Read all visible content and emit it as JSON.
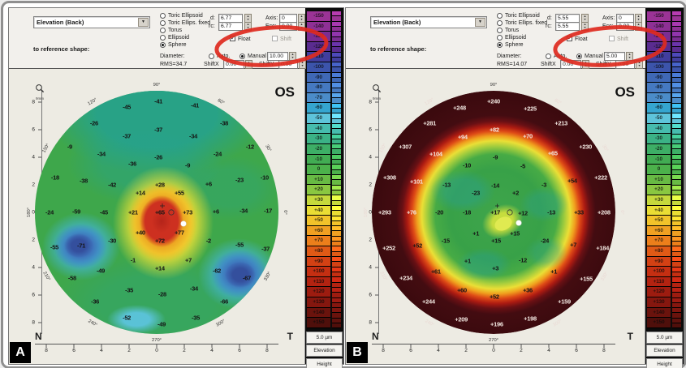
{
  "colors": {
    "annotation_red": "#de2a1e",
    "map_a_base_green": "#3ea74b",
    "map_b_ring_maroon": "#430c11",
    "hot_spot_red": "#cd3020",
    "cool_spot_blue": "#3e72bb"
  },
  "colorbar": {
    "unit": "5.0 µm",
    "btn_elevation": "Elevation",
    "btn_height": "Height",
    "segments": [
      {
        "label": "-150",
        "color": "#9b3396"
      },
      {
        "label": "-140",
        "color": "#8e3095"
      },
      {
        "label": "-130",
        "color": "#7b2d93"
      },
      {
        "label": "-120",
        "color": "#5a2c90"
      },
      {
        "label": "-110",
        "color": "#413e9e"
      },
      {
        "label": "-100",
        "color": "#3c54ab"
      },
      {
        "label": "-90",
        "color": "#3f68b6"
      },
      {
        "label": "-80",
        "color": "#4579c1"
      },
      {
        "label": "-70",
        "color": "#4b8cc9"
      },
      {
        "label": "-60",
        "color": "#35a5cf"
      },
      {
        "label": "-50",
        "color": "#5ec4da"
      },
      {
        "label": "-40",
        "color": "#46bcae"
      },
      {
        "label": "-30",
        "color": "#3bb286"
      },
      {
        "label": "-20",
        "color": "#3dae66"
      },
      {
        "label": "-10",
        "color": "#42ac53"
      },
      {
        "label": "0",
        "color": "#4cb14b"
      },
      {
        "label": "+10",
        "color": "#68ba44"
      },
      {
        "label": "+20",
        "color": "#8ac741"
      },
      {
        "label": "+30",
        "color": "#c6d93c"
      },
      {
        "label": "+40",
        "color": "#eadd34"
      },
      {
        "label": "+50",
        "color": "#f2c32a"
      },
      {
        "label": "+60",
        "color": "#f0a022"
      },
      {
        "label": "+70",
        "color": "#ec7f1b"
      },
      {
        "label": "+80",
        "color": "#e05a16"
      },
      {
        "label": "+90",
        "color": "#d34114"
      },
      {
        "label": "+100",
        "color": "#c52f12"
      },
      {
        "label": "+110",
        "color": "#b32311"
      },
      {
        "label": "+120",
        "color": "#9d1c10"
      },
      {
        "label": "+130",
        "color": "#85170f"
      },
      {
        "label": "+140",
        "color": "#6a130d"
      },
      {
        "label": "+150",
        "color": "#4f0f0b"
      }
    ]
  },
  "panels": [
    {
      "badge": "A",
      "controls": {
        "map_type": "Elevation (Back)",
        "reference_label": "to reference shape:",
        "shape_options": [
          "Toric Ellipsoid",
          "Toric Ellips. fixed",
          "Torus",
          "Ellipsoid",
          "Sphere"
        ],
        "selected_shape": "Sphere",
        "d_label": "d:",
        "d_value": "6.77",
        "rc_label": "rc:",
        "rc_value": "6.77",
        "axis_label": "Axis:",
        "axis_value": "0",
        "ecc_label": "Ecc:",
        "ecc_value": "0.00",
        "float_label": "Float",
        "shift_hint": "Shift",
        "diameter_label": "Diameter:",
        "auto_label": "Auto.",
        "manual_label": "Manual",
        "manual_value": "10.00",
        "rms": "RMS=34.7",
        "shiftx_label": "ShiftX",
        "shiftx_value": "0.00",
        "shifty_label": "ShiftY",
        "shifty_value": "0.00"
      },
      "map": {
        "eye": "OS",
        "n_label": "N",
        "t_label": "T",
        "zoom_label": "9mm",
        "x_labels": [
          "8",
          "6",
          "4",
          "2",
          "0",
          "2",
          "4",
          "6",
          "8"
        ],
        "y_labels": [
          "8",
          "6",
          "4",
          "2",
          "0",
          "2",
          "4",
          "6",
          "8"
        ],
        "axis_pos": [
          4.7,
          16,
          27.3,
          38.7,
          50,
          61.3,
          72.7,
          84,
          95.3
        ],
        "angles": [
          {
            "v": "0°",
            "l": 102.5,
            "t": 50,
            "rot": 90
          },
          {
            "v": "30°",
            "l": 95.5,
            "t": 23.8,
            "rot": 60
          },
          {
            "v": "60°",
            "l": 76.3,
            "t": 4.5,
            "rot": 30
          },
          {
            "v": "90°",
            "l": 50,
            "t": -2.5,
            "rot": 0
          },
          {
            "v": "120°",
            "l": 23.8,
            "t": 4.5,
            "rot": -30
          },
          {
            "v": "150°",
            "l": 4.5,
            "t": 23.8,
            "rot": -60
          },
          {
            "v": "180°",
            "l": -2.5,
            "t": 50,
            "rot": -90
          },
          {
            "v": "210°",
            "l": 4.5,
            "t": 76.3,
            "rot": 60
          },
          {
            "v": "240°",
            "l": 23.8,
            "t": 95.5,
            "rot": 30
          },
          {
            "v": "270°",
            "l": 50,
            "t": 102.5,
            "rot": 0
          },
          {
            "v": "300°",
            "l": 76.3,
            "t": 95.5,
            "rot": -30
          },
          {
            "v": "330°",
            "l": 95.5,
            "t": 76.3,
            "rot": -60
          }
        ],
        "points": [
          {
            "v": "-45",
            "l": 37.7,
            "t": 6.7
          },
          {
            "v": "-41",
            "l": 50.7,
            "t": 4.3
          },
          {
            "v": "-41",
            "l": 65.7,
            "t": 6.0
          },
          {
            "v": "-26",
            "l": 24.3,
            "t": 13.3
          },
          {
            "v": "-38",
            "l": 77.7,
            "t": 13.3
          },
          {
            "v": "-37",
            "l": 50.7,
            "t": 16.0
          },
          {
            "v": "-37",
            "l": 37.7,
            "t": 18.7
          },
          {
            "v": "-34",
            "l": 65.0,
            "t": 18.7
          },
          {
            "v": "-9",
            "l": 14.3,
            "t": 23.0
          },
          {
            "v": "-34",
            "l": 27.3,
            "t": 26.0
          },
          {
            "v": "-26",
            "l": 50.7,
            "t": 27.3
          },
          {
            "v": "-24",
            "l": 75.0,
            "t": 26.0
          },
          {
            "v": "-12",
            "l": 88.3,
            "t": 23.0
          },
          {
            "v": "-36",
            "l": 40.0,
            "t": 30.0
          },
          {
            "v": "-9",
            "l": 62.7,
            "t": 30.7
          },
          {
            "v": "-18",
            "l": 8.3,
            "t": 35.7
          },
          {
            "v": "-38",
            "l": 20.0,
            "t": 37.0
          },
          {
            "v": "-42",
            "l": 31.7,
            "t": 38.7
          },
          {
            "v": "+28",
            "l": 51.3,
            "t": 38.7
          },
          {
            "v": "+6",
            "l": 71.3,
            "t": 38.3
          },
          {
            "v": "-23",
            "l": 84.0,
            "t": 36.7
          },
          {
            "v": "-10",
            "l": 94.3,
            "t": 35.7
          },
          {
            "v": "+14",
            "l": 43.3,
            "t": 42.0
          },
          {
            "v": "+55",
            "l": 59.3,
            "t": 42.0
          },
          {
            "v": "-24",
            "l": 6.0,
            "t": 50.0
          },
          {
            "v": "-59",
            "l": 17.0,
            "t": 49.7
          },
          {
            "v": "-45",
            "l": 28.3,
            "t": 50.0
          },
          {
            "v": "+21",
            "l": 40.3,
            "t": 50.0
          },
          {
            "v": "+65",
            "l": 51.3,
            "t": 50.0
          },
          {
            "v": "+73",
            "l": 62.7,
            "t": 50.0
          },
          {
            "v": "+6",
            "l": 74.3,
            "t": 49.7
          },
          {
            "v": "-34",
            "l": 85.7,
            "t": 49.3
          },
          {
            "v": "-17",
            "l": 95.7,
            "t": 49.3
          },
          {
            "v": "+40",
            "l": 43.3,
            "t": 58.3
          },
          {
            "v": "+77",
            "l": 59.3,
            "t": 58.3
          },
          {
            "v": "-30",
            "l": 31.7,
            "t": 61.7
          },
          {
            "v": "+72",
            "l": 51.3,
            "t": 61.7
          },
          {
            "v": "-2",
            "l": 71.3,
            "t": 61.7
          },
          {
            "v": "-55",
            "l": 8.0,
            "t": 64.3
          },
          {
            "v": "-71",
            "l": 19.0,
            "t": 63.7
          },
          {
            "v": "-55",
            "l": 84.0,
            "t": 63.3
          },
          {
            "v": "-37",
            "l": 94.7,
            "t": 65.0
          },
          {
            "v": "-1",
            "l": 40.3,
            "t": 69.7
          },
          {
            "v": "+7",
            "l": 63.0,
            "t": 69.7
          },
          {
            "v": "+14",
            "l": 51.3,
            "t": 73.0
          },
          {
            "v": "-49",
            "l": 27.0,
            "t": 74.0
          },
          {
            "v": "-62",
            "l": 74.7,
            "t": 74.0
          },
          {
            "v": "-58",
            "l": 15.3,
            "t": 77.0
          },
          {
            "v": "-67",
            "l": 87.0,
            "t": 77.0
          },
          {
            "v": "-35",
            "l": 38.7,
            "t": 82.0
          },
          {
            "v": "-28",
            "l": 52.3,
            "t": 83.7
          },
          {
            "v": "-34",
            "l": 65.3,
            "t": 81.3
          },
          {
            "v": "-36",
            "l": 24.7,
            "t": 86.7
          },
          {
            "v": "-66",
            "l": 77.7,
            "t": 86.7
          },
          {
            "v": "-52",
            "l": 37.7,
            "t": 93.3
          },
          {
            "v": "-35",
            "l": 66.0,
            "t": 93.3
          },
          {
            "v": "-49",
            "l": 52.0,
            "t": 96.0
          }
        ]
      }
    },
    {
      "badge": "B",
      "controls": {
        "map_type": "Elevation (Back)",
        "reference_label": "to reference shape:",
        "shape_options": [
          "Toric Ellipsoid",
          "Toric Ellips. fixed",
          "Torus",
          "Ellipsoid",
          "Sphere"
        ],
        "selected_shape": "Sphere",
        "d_label": "d:",
        "d_value": "5.55",
        "rc_label": "rc:",
        "rc_value": "5.55",
        "axis_label": "Axis:",
        "axis_value": "0",
        "ecc_label": "Ecc:",
        "ecc_value": "0.00",
        "float_label": "Float",
        "shift_hint": "Shift",
        "diameter_label": "Diameter:",
        "auto_label": "Auto.",
        "manual_label": "Manual",
        "manual_value": "5.00",
        "rms": "RMS=14.07",
        "shiftx_label": "ShiftX",
        "shiftx_value": "0.00",
        "shifty_label": "ShiftY",
        "shifty_value": "0.00"
      },
      "map": {
        "eye": "OS",
        "n_label": "N",
        "t_label": "T",
        "zoom_label": "9mm",
        "x_labels": [
          "8",
          "6",
          "4",
          "2",
          "0",
          "2",
          "4",
          "6",
          "8"
        ],
        "y_labels": [
          "8",
          "6",
          "4",
          "2",
          "0",
          "2",
          "4",
          "6",
          "8"
        ],
        "axis_pos": [
          4.7,
          16,
          27.3,
          38.7,
          50,
          61.3,
          72.7,
          84,
          95.3
        ],
        "angles": [
          {
            "v": "0°",
            "l": 102.5,
            "t": 50,
            "rot": 90,
            "w": 1
          },
          {
            "v": "30°",
            "l": 95.5,
            "t": 23.8,
            "rot": 60,
            "w": 1
          },
          {
            "v": "60°",
            "l": 76.3,
            "t": 4.5,
            "rot": 30,
            "w": 1
          },
          {
            "v": "90°",
            "l": 50,
            "t": -2.5,
            "rot": 0
          },
          {
            "v": "120°",
            "l": 23.8,
            "t": 4.5,
            "rot": -30,
            "w": 1
          },
          {
            "v": "150°",
            "l": 4.5,
            "t": 23.8,
            "rot": -60,
            "w": 1
          },
          {
            "v": "180°",
            "l": -2.5,
            "t": 50,
            "rot": -90,
            "w": 1
          },
          {
            "v": "210°",
            "l": 4.5,
            "t": 76.3,
            "rot": 60,
            "w": 1
          },
          {
            "v": "240°",
            "l": 23.8,
            "t": 95.5,
            "rot": 30,
            "w": 1
          },
          {
            "v": "270°",
            "l": 50,
            "t": 102.5,
            "rot": 0
          },
          {
            "v": "300°",
            "l": 76.3,
            "t": 95.5,
            "rot": -30,
            "w": 1
          },
          {
            "v": "330°",
            "l": 95.5,
            "t": 76.3,
            "rot": -60,
            "w": 1
          }
        ],
        "points": [
          {
            "v": "+248",
            "l": 36.0,
            "t": 7.0,
            "w": 1
          },
          {
            "v": "+240",
            "l": 50.0,
            "t": 4.3,
            "w": 1
          },
          {
            "v": "+225",
            "l": 65.0,
            "t": 7.3,
            "w": 1
          },
          {
            "v": "+281",
            "l": 23.7,
            "t": 13.3,
            "w": 1
          },
          {
            "v": "+213",
            "l": 77.7,
            "t": 13.3,
            "w": 1
          },
          {
            "v": "+82",
            "l": 50.3,
            "t": 16.0,
            "w": 1
          },
          {
            "v": "+94",
            "l": 37.3,
            "t": 19.0,
            "w": 1
          },
          {
            "v": "+70",
            "l": 64.0,
            "t": 18.7,
            "w": 1
          },
          {
            "v": "+307",
            "l": 13.7,
            "t": 23.0,
            "w": 1
          },
          {
            "v": "+104",
            "l": 26.3,
            "t": 26.0,
            "w": 1
          },
          {
            "v": "-9",
            "l": 50.7,
            "t": 27.3
          },
          {
            "v": "+65",
            "l": 74.3,
            "t": 25.7,
            "w": 1
          },
          {
            "v": "+230",
            "l": 87.7,
            "t": 23.0,
            "w": 1
          },
          {
            "v": "-10",
            "l": 39.0,
            "t": 30.7
          },
          {
            "v": "-5",
            "l": 62.0,
            "t": 31.0
          },
          {
            "v": "+308",
            "l": 7.3,
            "t": 35.7,
            "w": 1
          },
          {
            "v": "+101",
            "l": 18.3,
            "t": 37.3,
            "w": 1
          },
          {
            "v": "-13",
            "l": 30.7,
            "t": 38.7
          },
          {
            "v": "-14",
            "l": 50.7,
            "t": 39.0
          },
          {
            "v": "-3",
            "l": 70.7,
            "t": 38.7
          },
          {
            "v": "+54",
            "l": 82.3,
            "t": 37.0
          },
          {
            "v": "+222",
            "l": 94.0,
            "t": 35.7,
            "w": 1
          },
          {
            "v": "-23",
            "l": 42.7,
            "t": 42.0
          },
          {
            "v": "+2",
            "l": 59.0,
            "t": 42.0
          },
          {
            "v": "+293",
            "l": 5.3,
            "t": 50.0,
            "w": 1
          },
          {
            "v": "+76",
            "l": 16.3,
            "t": 50.0,
            "w": 1
          },
          {
            "v": "-20",
            "l": 27.7,
            "t": 50.0
          },
          {
            "v": "-18",
            "l": 39.0,
            "t": 50.0
          },
          {
            "v": "+17",
            "l": 50.7,
            "t": 50.0
          },
          {
            "v": "+12",
            "l": 62.0,
            "t": 50.3
          },
          {
            "v": "-13",
            "l": 73.7,
            "t": 50.0
          },
          {
            "v": "+33",
            "l": 85.0,
            "t": 50.0
          },
          {
            "v": "+208",
            "l": 95.3,
            "t": 50.0,
            "w": 1
          },
          {
            "v": "+1",
            "l": 42.7,
            "t": 58.7
          },
          {
            "v": "+15",
            "l": 58.7,
            "t": 58.7
          },
          {
            "v": "-15",
            "l": 30.3,
            "t": 61.7
          },
          {
            "v": "+15",
            "l": 51.0,
            "t": 61.7
          },
          {
            "v": "-24",
            "l": 71.0,
            "t": 61.7
          },
          {
            "v": "+7",
            "l": 82.7,
            "t": 63.3
          },
          {
            "v": "+252",
            "l": 7.0,
            "t": 64.7,
            "w": 1
          },
          {
            "v": "+52",
            "l": 18.7,
            "t": 63.7
          },
          {
            "v": "+184",
            "l": 94.7,
            "t": 64.7,
            "w": 1
          },
          {
            "v": "+1",
            "l": 39.3,
            "t": 70.0
          },
          {
            "v": "-12",
            "l": 62.0,
            "t": 69.7
          },
          {
            "v": "+61",
            "l": 26.3,
            "t": 74.3
          },
          {
            "v": "+3",
            "l": 50.7,
            "t": 73.0
          },
          {
            "v": "+1",
            "l": 74.7,
            "t": 74.3
          },
          {
            "v": "+234",
            "l": 14.0,
            "t": 77.0,
            "w": 1
          },
          {
            "v": "+155",
            "l": 88.0,
            "t": 77.3,
            "w": 1
          },
          {
            "v": "+60",
            "l": 37.0,
            "t": 82.0
          },
          {
            "v": "+36",
            "l": 64.0,
            "t": 82.0
          },
          {
            "v": "+52",
            "l": 50.3,
            "t": 84.7
          },
          {
            "v": "+244",
            "l": 23.3,
            "t": 86.7,
            "w": 1
          },
          {
            "v": "+159",
            "l": 79.0,
            "t": 86.7,
            "w": 1
          },
          {
            "v": "+209",
            "l": 36.7,
            "t": 94.0,
            "w": 1
          },
          {
            "v": "+196",
            "l": 51.3,
            "t": 96.0,
            "w": 1
          },
          {
            "v": "+198",
            "l": 65.0,
            "t": 93.7,
            "w": 1
          }
        ]
      }
    }
  ]
}
